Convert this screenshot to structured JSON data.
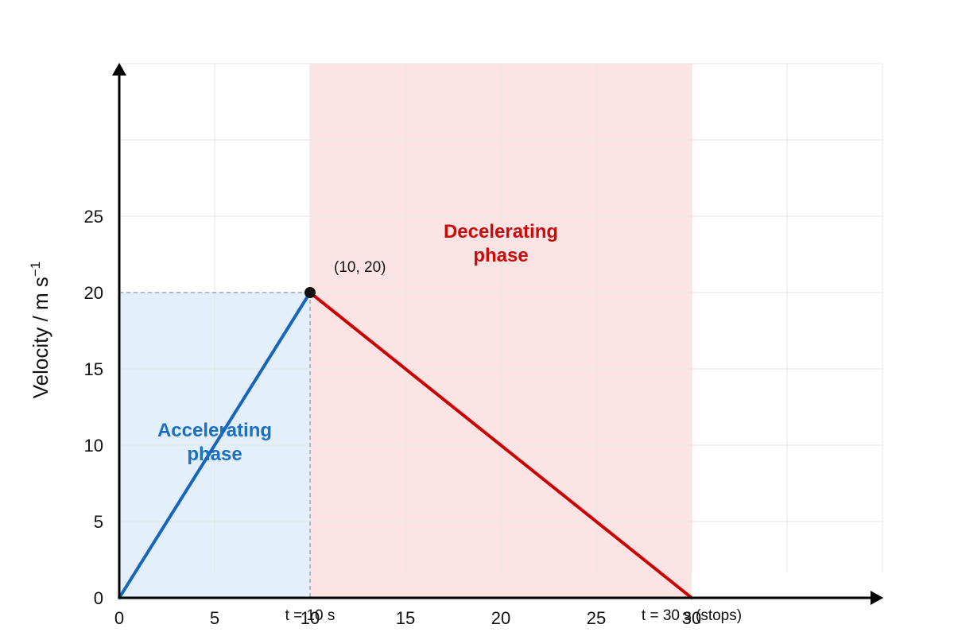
{
  "chart_data": {
    "type": "line",
    "ylabel": "Velocity / m s",
    "ylabel_exponent": "−1",
    "xlim": [
      0,
      40
    ],
    "ylim": [
      0,
      35
    ],
    "x_ticks": [
      "0",
      "5",
      "10",
      "15",
      "20",
      "25",
      "30"
    ],
    "y_ticks": [
      "0",
      "5",
      "10",
      "15",
      "20",
      "25"
    ],
    "grid": true,
    "series": [
      {
        "x": [
          0,
          10
        ],
        "y": [
          0,
          20
        ],
        "color": "#1565c0"
      },
      {
        "x": [
          10,
          30
        ],
        "y": [
          20,
          0
        ],
        "color": "#cc0000"
      }
    ],
    "regions": [
      {
        "x": [
          0,
          10
        ],
        "label": "Accelerating phase",
        "label_color": "#1a6fc4",
        "fill": "#e3f0fb"
      },
      {
        "x": [
          10,
          30
        ],
        "label": "Decelerating phase",
        "label_color": "#cc0a0a",
        "fill": "#fce4e4"
      }
    ],
    "annotations": [
      {
        "text": "(10, 20)",
        "x": 10,
        "y": 20
      },
      {
        "text": "t = 10 s",
        "x": 10,
        "y": 0
      },
      {
        "text": "t = 30 s (stops)",
        "x": 30,
        "y": 0
      }
    ]
  }
}
